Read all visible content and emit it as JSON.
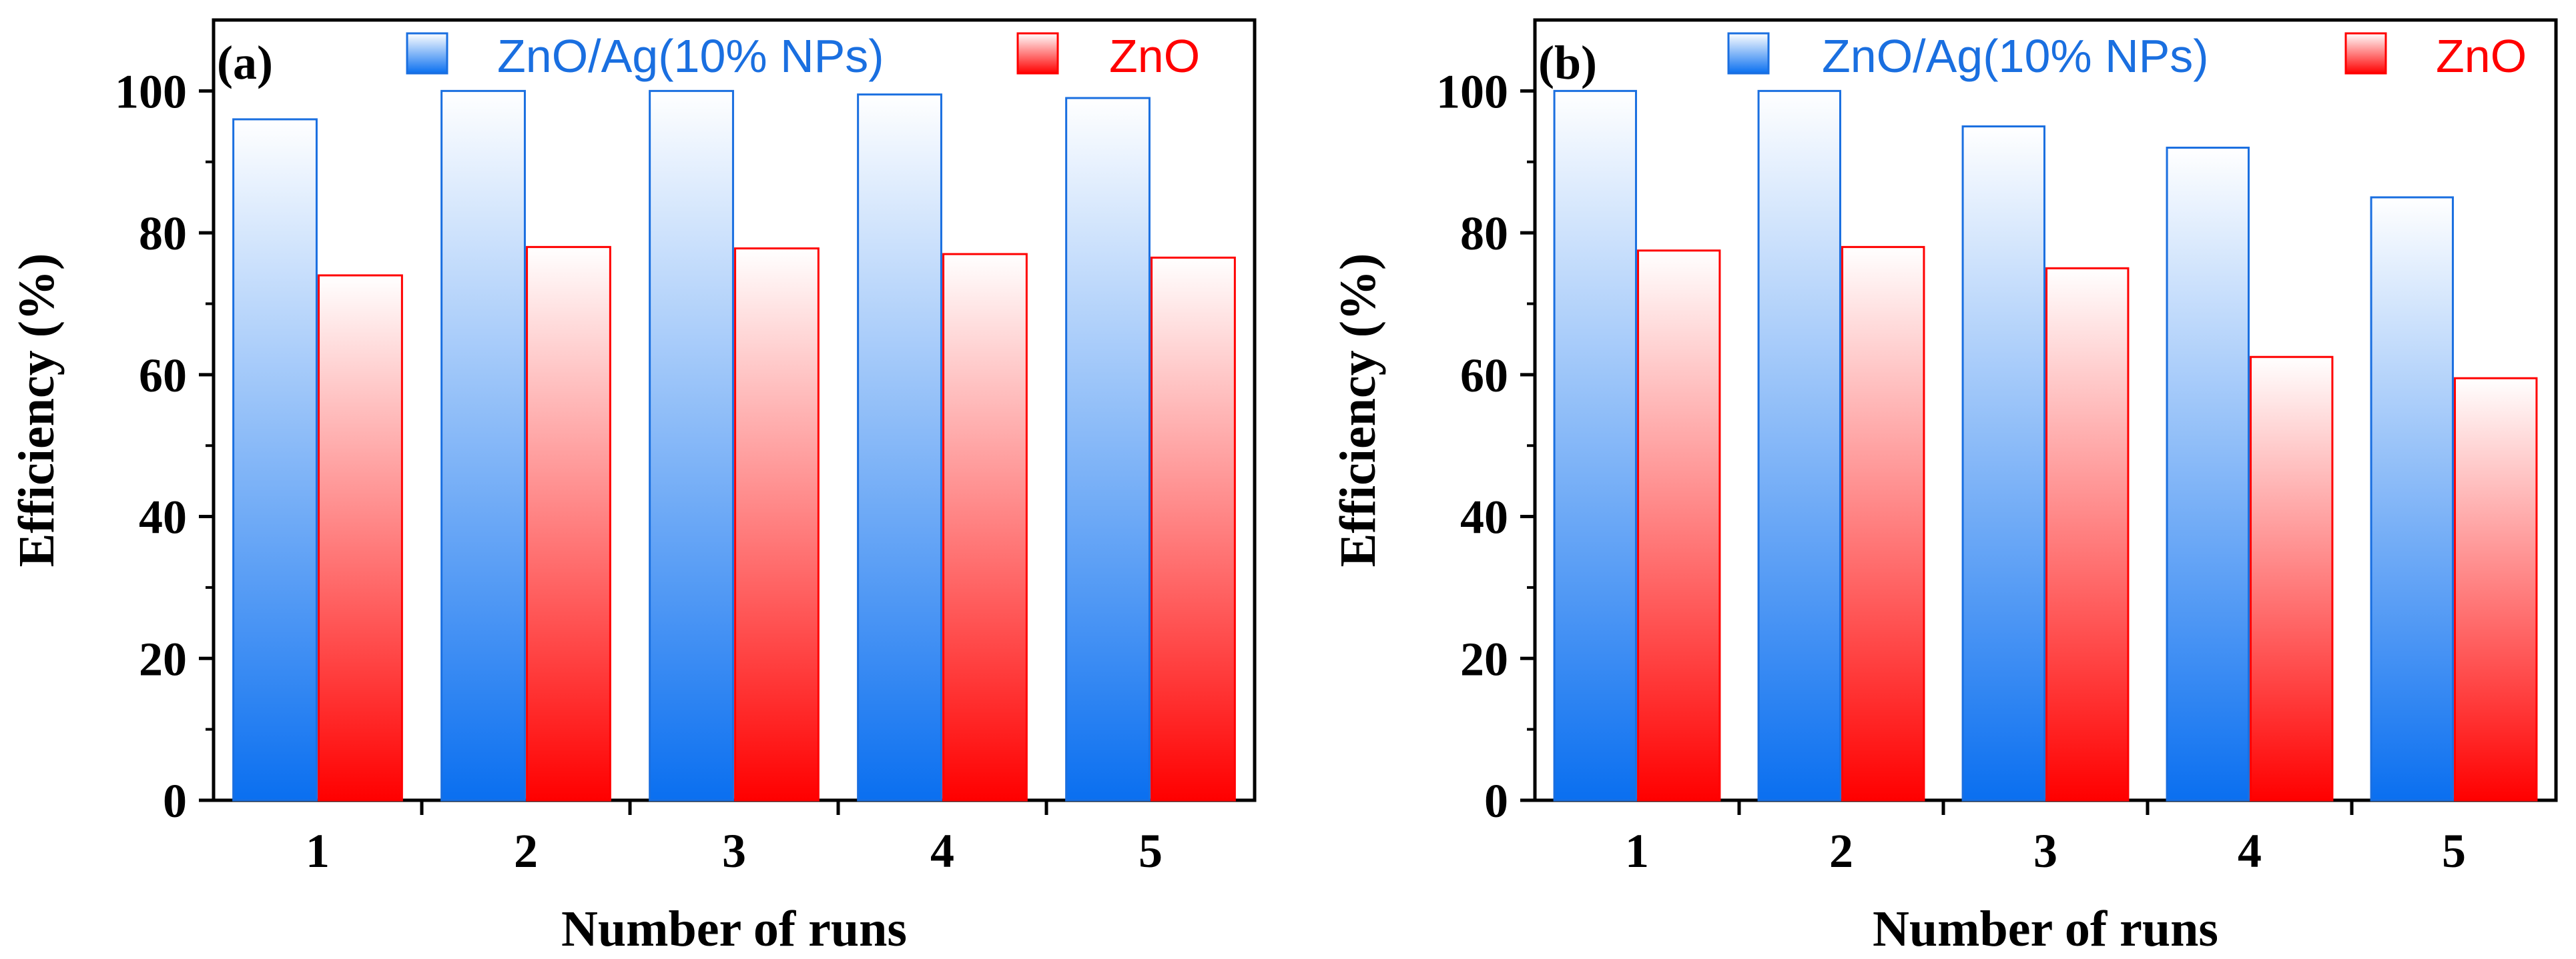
{
  "chart_data": [
    {
      "type": "bar",
      "panel_label": "(a)",
      "categories": [
        "1",
        "2",
        "3",
        "4",
        "5"
      ],
      "series": [
        {
          "name": "ZnO/Ag(10% NPs)",
          "values": [
            96,
            100,
            100,
            99.5,
            99
          ]
        },
        {
          "name": "ZnO",
          "values": [
            74,
            78,
            77.8,
            77,
            76.5
          ]
        }
      ],
      "xlabel": "Number of runs",
      "ylabel": "Efficiency (%)",
      "ylim": [
        0,
        110
      ],
      "yticks": [
        0,
        20,
        40,
        60,
        80,
        100
      ],
      "legend_position": "top"
    },
    {
      "type": "bar",
      "panel_label": "(b)",
      "categories": [
        "1",
        "2",
        "3",
        "4",
        "5"
      ],
      "series": [
        {
          "name": "ZnO/Ag(10% NPs)",
          "values": [
            100,
            100,
            95,
            92,
            85
          ]
        },
        {
          "name": "ZnO",
          "values": [
            77.5,
            78,
            75,
            62.5,
            59.5
          ]
        }
      ],
      "xlabel": "Number of runs",
      "ylabel": "Efficiency (%)",
      "ylim": [
        0,
        110
      ],
      "yticks": [
        0,
        20,
        40,
        60,
        80,
        100
      ],
      "legend_position": "top"
    }
  ],
  "colors": {
    "series_1_dark": "#0a6ff0",
    "series_1_light": "#ffffff",
    "series_1_text": "#1a6fe0",
    "series_2_dark": "#ff0000",
    "series_2_light": "#ffffff",
    "series_2_text": "#ff0000",
    "axis": "#000000"
  }
}
